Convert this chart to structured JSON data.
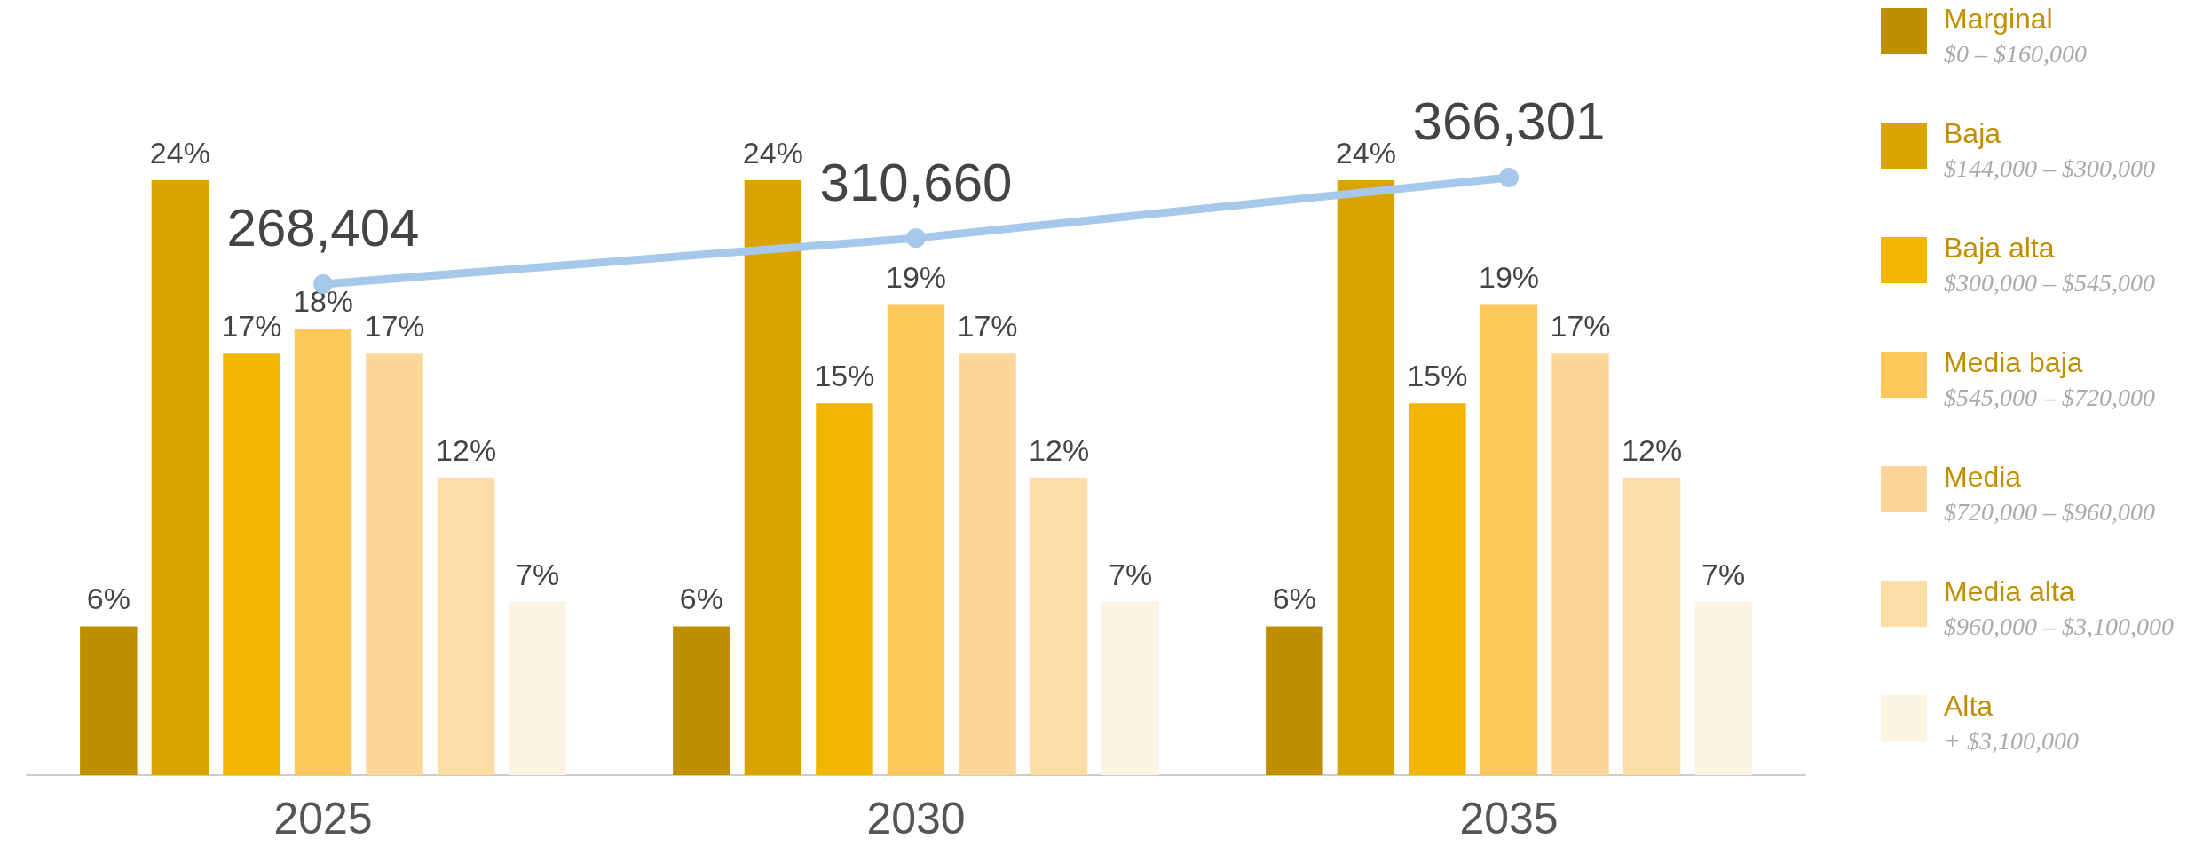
{
  "chart_data": {
    "type": "bar",
    "categories": [
      "2025",
      "2030",
      "2035"
    ],
    "series": [
      {
        "name": "Marginal\n$0 – $160,000",
        "color": "#bf8f00",
        "values": [
          6,
          6,
          6
        ],
        "value_labels": [
          "6%",
          "6%",
          "6%"
        ]
      },
      {
        "name": "Baja\n$144,000 – $300,000",
        "color": "#d9a400",
        "values": [
          24,
          24,
          24
        ],
        "value_labels": [
          "24%",
          "24%",
          "24%"
        ]
      },
      {
        "name": "Baja alta\n$300,000 – $545,000",
        "color": "#f2b600",
        "values": [
          17,
          15,
          15
        ],
        "value_labels": [
          "17%",
          "15%",
          "15%"
        ]
      },
      {
        "name": "Media baja\n$545,000 – $720,000",
        "color": "#fec85a",
        "values": [
          18,
          19,
          19
        ],
        "value_labels": [
          "18%",
          "19%",
          "19%"
        ]
      },
      {
        "name": "Media\n$720,000 – $960,000",
        "color": "#fed699",
        "values": [
          17,
          17,
          17
        ],
        "value_labels": [
          "17%",
          "17%",
          "17%"
        ]
      },
      {
        "name": "Media alta\n$960,000 – $3,100,000",
        "color": "#fddca6",
        "values": [
          12,
          12,
          12
        ],
        "value_labels": [
          "12%",
          "12%",
          "12%"
        ]
      },
      {
        "name": "Alta\n+ $3,100,000",
        "color": "#fdf3e3",
        "values": [
          7,
          7,
          7
        ],
        "value_labels": [
          "7%",
          "7%",
          "7%"
        ]
      },
      {
        "type": "line",
        "axis": "y2",
        "color": "#a5c8eb",
        "marker": "circle",
        "values": [
          268404,
          310660,
          366301
        ],
        "value_labels": [
          "268,404",
          "310,660",
          "366,301"
        ]
      }
    ],
    "legend": "right",
    "grid": false,
    "tick_labels": "x"
  }
}
